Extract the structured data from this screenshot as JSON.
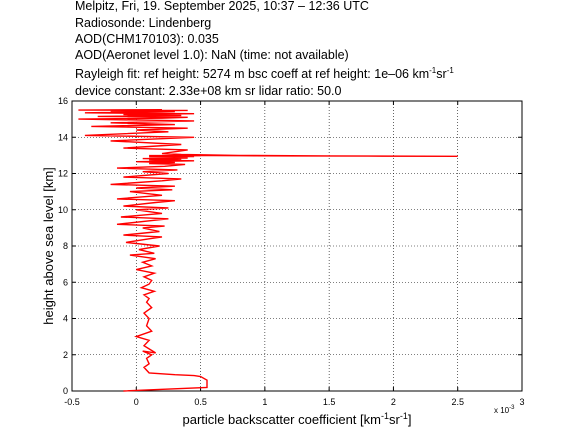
{
  "header": {
    "line1": "Melpitz, Fri, 19. September 2025, 10:37 – 12:36 UTC",
    "line2": "Radiosonde: Lindenberg",
    "line3": "AOD(CHM170103): 0.035",
    "line4": "AOD(Aeronet level 1.0): NaN   (time: not available)",
    "line5_a": "Rayleigh fit:     ref height: 5274 m     bsc coeff at ref height: 1e–06 km",
    "line5_b": "sr",
    "line6": "device constant: 2.33e+08 km sr     lidar ratio: 50.0"
  },
  "chart_data": {
    "type": "line",
    "xlabel": "particle backscatter coefficient [km⁻¹sr⁻¹]",
    "xlabel_parts": [
      "particle backscatter coefficient [km",
      "sr",
      "]"
    ],
    "ylabel": "height above sea level [km]",
    "x_exponent_label": "x 10",
    "x_exponent": "-3",
    "xlim": [
      -0.5,
      3.0
    ],
    "ylim": [
      0,
      16
    ],
    "xticks": [
      -0.5,
      0,
      0.5,
      1,
      1.5,
      2,
      2.5,
      3
    ],
    "xtick_labels": [
      "-0.5",
      "0",
      "0.5",
      "1",
      "1.5",
      "2",
      "2.5",
      "3"
    ],
    "yticks": [
      0,
      2,
      4,
      6,
      8,
      10,
      12,
      14,
      16
    ],
    "ytick_labels": [
      "0",
      "2",
      "4",
      "6",
      "8",
      "10",
      "12",
      "14",
      "16"
    ],
    "grid": true,
    "series": [
      {
        "color": "#ff0000",
        "x": [
          -0.1,
          0.55,
          0.55,
          0.5,
          0.45,
          0.3,
          0.1,
          0.06,
          0.1,
          0.08,
          0.12,
          0.05,
          0.15,
          0.06,
          0.1,
          0.0,
          0.12,
          0.08,
          0.1,
          0.06,
          0.12,
          0.08,
          0.1,
          0.06,
          0.14,
          0.04,
          0.1,
          0.12,
          0.06,
          0.14,
          0.0,
          0.12,
          0.05,
          0.15,
          -0.05,
          0.14,
          0.02,
          0.18,
          -0.08,
          0.1,
          0.2,
          -0.1,
          0.18,
          0.05,
          0.22,
          -0.15,
          0.12,
          0.25,
          -0.12,
          0.2,
          0.0,
          0.25,
          -0.1,
          0.15,
          0.3,
          -0.15,
          0.2,
          -0.05,
          0.28,
          0.0,
          0.3,
          -0.2,
          0.2,
          0.35,
          -0.1,
          0.25,
          0.05,
          0.32,
          -0.15,
          0.22,
          0.38,
          0.1,
          0.3,
          0.0,
          0.45,
          0.1,
          0.35,
          0.05,
          0.4,
          0.2,
          0.3,
          0.1,
          0.45,
          0.2,
          0.5,
          0.1,
          0.6,
          0.8,
          1.2,
          1.8,
          2.5,
          1.5,
          0.8,
          0.35,
          0.2,
          0.4,
          -0.1,
          0.35,
          -0.2,
          0.45,
          -0.4,
          0.25,
          0.0,
          0.4,
          -0.35,
          0.3,
          -0.2,
          0.45,
          -0.45,
          0.2,
          0.4,
          -0.3,
          0.35,
          -0.1,
          0.45,
          -0.4,
          0.15,
          0.3,
          -0.2,
          0.4,
          -0.45,
          0.2
        ],
        "y": [
          0.0,
          0.2,
          0.6,
          0.8,
          0.85,
          0.9,
          1.0,
          1.3,
          1.5,
          1.8,
          2.0,
          2.2,
          2.1,
          2.5,
          2.8,
          3.0,
          3.3,
          3.6,
          4.0,
          4.3,
          4.6,
          4.9,
          5.1,
          5.3,
          5.5,
          5.7,
          5.9,
          6.1,
          6.3,
          6.5,
          6.7,
          6.9,
          7.1,
          7.3,
          7.5,
          7.6,
          7.8,
          8.0,
          8.2,
          8.4,
          8.5,
          8.6,
          8.8,
          9.0,
          9.1,
          9.2,
          9.4,
          9.5,
          9.6,
          9.8,
          10.0,
          10.1,
          10.2,
          10.4,
          10.5,
          10.6,
          10.8,
          11.0,
          11.1,
          11.2,
          11.3,
          11.4,
          11.6,
          11.7,
          11.8,
          12.0,
          12.1,
          12.2,
          12.3,
          12.4,
          12.5,
          12.55,
          12.6,
          12.65,
          12.7,
          12.75,
          12.8,
          12.82,
          12.85,
          12.88,
          12.9,
          12.92,
          12.94,
          12.96,
          12.98,
          12.99,
          12.99,
          12.98,
          12.97,
          12.96,
          12.95,
          12.97,
          13.0,
          13.05,
          13.1,
          13.3,
          13.4,
          13.6,
          13.8,
          14.0,
          14.1,
          14.3,
          14.4,
          14.5,
          14.6,
          14.7,
          14.8,
          14.9,
          15.0,
          15.05,
          15.1,
          15.15,
          15.2,
          15.25,
          15.3,
          15.35,
          15.4,
          15.42,
          15.45,
          15.48,
          15.5,
          15.52
        ]
      }
    ]
  }
}
